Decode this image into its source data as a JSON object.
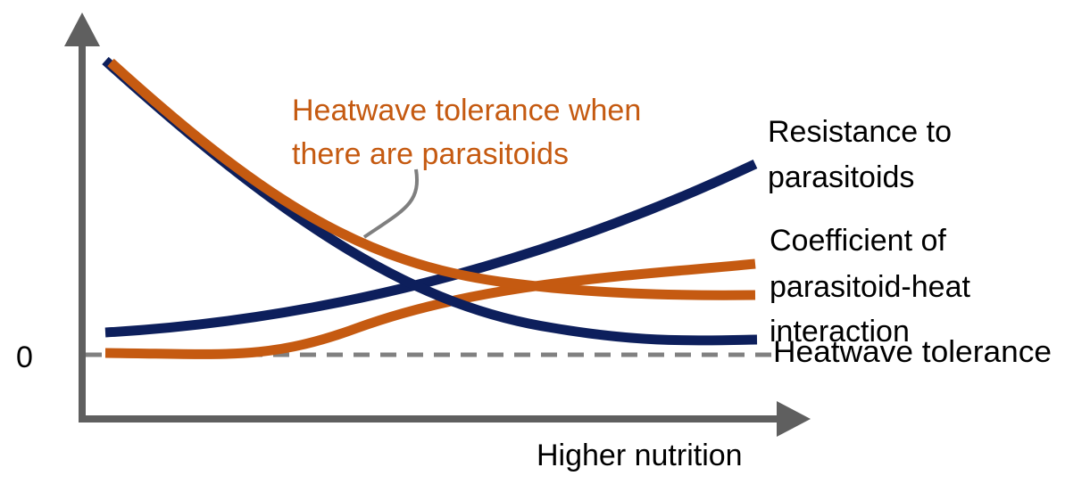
{
  "diagram": {
    "x_axis_label": "Higher nutrition",
    "zero_label": "0",
    "colors": {
      "axis": "#5f5f5f",
      "navy": "#0d1f5c",
      "orange": "#c55a11",
      "leader": "#7f7f7f",
      "zero_line": "#808080"
    },
    "curves": [
      {
        "id": "resistance",
        "color": "#0d1f5c",
        "label_lines": [
          "Resistance to",
          "parasitoids"
        ]
      },
      {
        "id": "coefficient",
        "color": "#c55a11",
        "label_lines": [
          "Coefficient of",
          "parasitoid-heat",
          "interaction"
        ]
      },
      {
        "id": "heatwave",
        "color": "#0d1f5c",
        "label_lines": [
          "Heatwave tolerance"
        ]
      },
      {
        "id": "heatwave-parasitoids",
        "color": "#c55a11",
        "label_lines": [
          "Heatwave tolerance when",
          "there are parasitoids"
        ]
      }
    ]
  }
}
